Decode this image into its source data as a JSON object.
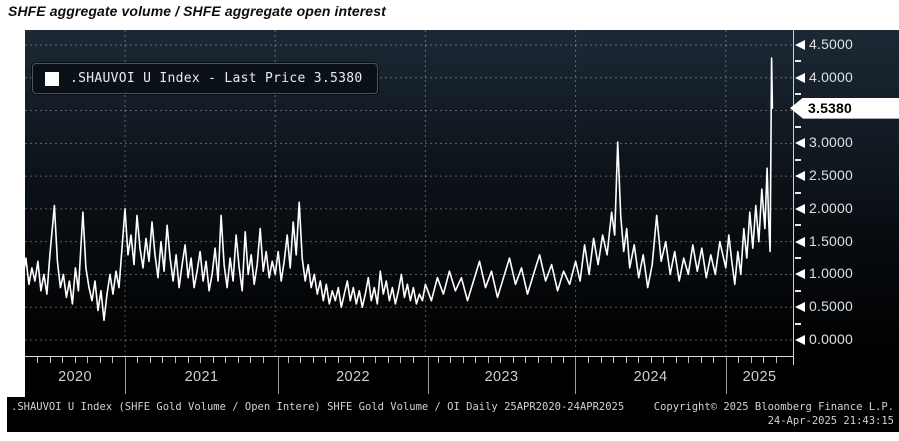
{
  "title": "SHFE aggregate volume / SHFE aggregate open interest",
  "legend": {
    "marker": "white-square",
    "label": ".SHAUVOI U Index - Last Price 3.5380"
  },
  "y_axis": {
    "ticks": [
      {
        "value": 4.5,
        "label": "4.5000"
      },
      {
        "value": 4.0,
        "label": "4.0000"
      },
      {
        "value": 3.0,
        "label": "3.0000"
      },
      {
        "value": 2.5,
        "label": "2.5000"
      },
      {
        "value": 2.0,
        "label": "2.0000"
      },
      {
        "value": 1.5,
        "label": "1.5000"
      },
      {
        "value": 1.0,
        "label": "1.0000"
      },
      {
        "value": 0.5,
        "label": "0.5000"
      },
      {
        "value": 0.0,
        "label": "0.0000"
      }
    ],
    "last_price_label": "3.5380",
    "last_price_value": 3.538
  },
  "x_axis": {
    "year_labels": [
      "2020",
      "2021",
      "2022",
      "2023",
      "2024",
      "2025"
    ]
  },
  "status_bar": {
    "left": ".SHAUVOI U Index (SHFE Gold Volume / Open Intere) SHFE Gold Volume / OI  Daily 25APR2020-24APR2025",
    "copyright": "Copyright© 2025 Bloomberg Finance L.P.",
    "timestamp": "24-Apr-2025 21:43:15"
  },
  "colors": {
    "line": "#ffffff",
    "plot_bg_top": "#1c2936",
    "plot_bg_mid": "#0c1218",
    "plot_bg_bottom": "#000000",
    "grid": "rgba(255,255,255,0.33)",
    "price_box_bg": "#ffffff",
    "price_box_text": "#000000"
  },
  "chart_data": {
    "type": "line",
    "title": "SHFE aggregate volume / SHFE aggregate open interest",
    "xlabel": "",
    "ylabel": "",
    "x_range": [
      "25APR2020",
      "24APR2025"
    ],
    "ylim": [
      0.0,
      4.5
    ],
    "grid": "dotted",
    "legend_position": "top-left",
    "last_price": 3.538,
    "series": [
      {
        "name": ".SHAUVOI U Index",
        "x_unit": "decimal_year",
        "points": [
          [
            2020.32,
            0.95
          ],
          [
            2020.34,
            1.25
          ],
          [
            2020.36,
            0.85
          ],
          [
            2020.38,
            1.1
          ],
          [
            2020.4,
            0.9
          ],
          [
            2020.42,
            1.2
          ],
          [
            2020.44,
            0.75
          ],
          [
            2020.46,
            1.0
          ],
          [
            2020.48,
            0.7
          ],
          [
            2020.5,
            1.3
          ],
          [
            2020.53,
            2.05
          ],
          [
            2020.55,
            1.2
          ],
          [
            2020.57,
            0.8
          ],
          [
            2020.59,
            1.0
          ],
          [
            2020.61,
            0.65
          ],
          [
            2020.63,
            0.9
          ],
          [
            2020.65,
            0.55
          ],
          [
            2020.67,
            1.1
          ],
          [
            2020.69,
            0.75
          ],
          [
            2020.72,
            1.95
          ],
          [
            2020.74,
            1.1
          ],
          [
            2020.76,
            0.8
          ],
          [
            2020.78,
            0.6
          ],
          [
            2020.8,
            0.9
          ],
          [
            2020.82,
            0.45
          ],
          [
            2020.84,
            0.75
          ],
          [
            2020.86,
            0.3
          ],
          [
            2020.88,
            0.7
          ],
          [
            2020.9,
            1.0
          ],
          [
            2020.92,
            0.7
          ],
          [
            2020.94,
            1.05
          ],
          [
            2020.96,
            0.8
          ],
          [
            2020.98,
            1.4
          ],
          [
            2021.0,
            2.0
          ],
          [
            2021.02,
            1.3
          ],
          [
            2021.04,
            1.6
          ],
          [
            2021.06,
            1.15
          ],
          [
            2021.08,
            1.9
          ],
          [
            2021.1,
            1.4
          ],
          [
            2021.12,
            1.1
          ],
          [
            2021.14,
            1.55
          ],
          [
            2021.16,
            1.2
          ],
          [
            2021.18,
            1.8
          ],
          [
            2021.2,
            1.3
          ],
          [
            2021.22,
            0.95
          ],
          [
            2021.24,
            1.5
          ],
          [
            2021.26,
            1.05
          ],
          [
            2021.28,
            1.75
          ],
          [
            2021.3,
            1.25
          ],
          [
            2021.32,
            0.9
          ],
          [
            2021.34,
            1.3
          ],
          [
            2021.36,
            0.8
          ],
          [
            2021.38,
            1.15
          ],
          [
            2021.4,
            1.45
          ],
          [
            2021.42,
            0.95
          ],
          [
            2021.44,
            1.25
          ],
          [
            2021.46,
            0.8
          ],
          [
            2021.48,
            1.05
          ],
          [
            2021.5,
            1.35
          ],
          [
            2021.52,
            0.9
          ],
          [
            2021.54,
            1.2
          ],
          [
            2021.56,
            0.75
          ],
          [
            2021.58,
            1.0
          ],
          [
            2021.6,
            1.4
          ],
          [
            2021.62,
            0.9
          ],
          [
            2021.64,
            1.9
          ],
          [
            2021.66,
            1.15
          ],
          [
            2021.68,
            0.8
          ],
          [
            2021.7,
            1.25
          ],
          [
            2021.72,
            0.9
          ],
          [
            2021.74,
            1.6
          ],
          [
            2021.76,
            1.1
          ],
          [
            2021.78,
            0.75
          ],
          [
            2021.8,
            1.65
          ],
          [
            2021.82,
            1.0
          ],
          [
            2021.84,
            1.3
          ],
          [
            2021.86,
            0.85
          ],
          [
            2021.88,
            1.15
          ],
          [
            2021.9,
            1.7
          ],
          [
            2021.92,
            1.05
          ],
          [
            2021.94,
            1.35
          ],
          [
            2021.96,
            0.95
          ],
          [
            2021.98,
            1.2
          ],
          [
            2022.0,
            1.0
          ],
          [
            2022.02,
            1.35
          ],
          [
            2022.04,
            0.9
          ],
          [
            2022.06,
            1.2
          ],
          [
            2022.08,
            1.6
          ],
          [
            2022.1,
            1.1
          ],
          [
            2022.12,
            1.8
          ],
          [
            2022.14,
            1.3
          ],
          [
            2022.16,
            2.1
          ],
          [
            2022.18,
            1.25
          ],
          [
            2022.2,
            0.9
          ],
          [
            2022.22,
            1.15
          ],
          [
            2022.24,
            0.8
          ],
          [
            2022.26,
            1.0
          ],
          [
            2022.28,
            0.7
          ],
          [
            2022.3,
            0.9
          ],
          [
            2022.32,
            0.6
          ],
          [
            2022.34,
            0.85
          ],
          [
            2022.36,
            0.55
          ],
          [
            2022.38,
            0.75
          ],
          [
            2022.4,
            0.6
          ],
          [
            2022.42,
            0.8
          ],
          [
            2022.44,
            0.5
          ],
          [
            2022.46,
            0.7
          ],
          [
            2022.48,
            0.9
          ],
          [
            2022.5,
            0.6
          ],
          [
            2022.52,
            0.8
          ],
          [
            2022.54,
            0.55
          ],
          [
            2022.56,
            0.75
          ],
          [
            2022.58,
            0.5
          ],
          [
            2022.6,
            0.7
          ],
          [
            2022.62,
            0.95
          ],
          [
            2022.64,
            0.6
          ],
          [
            2022.66,
            0.8
          ],
          [
            2022.68,
            0.55
          ],
          [
            2022.7,
            1.05
          ],
          [
            2022.72,
            0.7
          ],
          [
            2022.74,
            0.9
          ],
          [
            2022.76,
            0.6
          ],
          [
            2022.78,
            0.8
          ],
          [
            2022.8,
            0.55
          ],
          [
            2022.82,
            0.75
          ],
          [
            2022.84,
            1.0
          ],
          [
            2022.86,
            0.65
          ],
          [
            2022.88,
            0.85
          ],
          [
            2022.9,
            0.6
          ],
          [
            2022.92,
            0.8
          ],
          [
            2022.94,
            0.55
          ],
          [
            2022.96,
            0.7
          ],
          [
            2022.98,
            0.6
          ],
          [
            2023.0,
            0.85
          ],
          [
            2023.04,
            0.6
          ],
          [
            2023.08,
            0.95
          ],
          [
            2023.12,
            0.7
          ],
          [
            2023.16,
            1.05
          ],
          [
            2023.2,
            0.75
          ],
          [
            2023.24,
            0.95
          ],
          [
            2023.28,
            0.6
          ],
          [
            2023.32,
            0.9
          ],
          [
            2023.36,
            1.2
          ],
          [
            2023.4,
            0.8
          ],
          [
            2023.44,
            1.05
          ],
          [
            2023.48,
            0.65
          ],
          [
            2023.52,
            0.95
          ],
          [
            2023.56,
            1.25
          ],
          [
            2023.6,
            0.85
          ],
          [
            2023.64,
            1.1
          ],
          [
            2023.68,
            0.7
          ],
          [
            2023.72,
            1.0
          ],
          [
            2023.76,
            1.3
          ],
          [
            2023.8,
            0.9
          ],
          [
            2023.84,
            1.15
          ],
          [
            2023.88,
            0.75
          ],
          [
            2023.92,
            1.05
          ],
          [
            2023.96,
            0.85
          ],
          [
            2024.0,
            1.2
          ],
          [
            2024.03,
            0.9
          ],
          [
            2024.06,
            1.45
          ],
          [
            2024.09,
            1.0
          ],
          [
            2024.12,
            1.55
          ],
          [
            2024.15,
            1.15
          ],
          [
            2024.18,
            1.6
          ],
          [
            2024.21,
            1.3
          ],
          [
            2024.24,
            1.95
          ],
          [
            2024.26,
            1.6
          ],
          [
            2024.28,
            3.02
          ],
          [
            2024.3,
            1.9
          ],
          [
            2024.32,
            1.35
          ],
          [
            2024.34,
            1.7
          ],
          [
            2024.36,
            1.1
          ],
          [
            2024.39,
            1.45
          ],
          [
            2024.42,
            0.95
          ],
          [
            2024.45,
            1.3
          ],
          [
            2024.48,
            0.8
          ],
          [
            2024.51,
            1.15
          ],
          [
            2024.54,
            1.9
          ],
          [
            2024.57,
            1.2
          ],
          [
            2024.6,
            1.5
          ],
          [
            2024.63,
            1.0
          ],
          [
            2024.66,
            1.35
          ],
          [
            2024.69,
            0.9
          ],
          [
            2024.72,
            1.25
          ],
          [
            2024.75,
            1.0
          ],
          [
            2024.78,
            1.45
          ],
          [
            2024.81,
            1.05
          ],
          [
            2024.84,
            1.4
          ],
          [
            2024.87,
            0.95
          ],
          [
            2024.9,
            1.3
          ],
          [
            2024.93,
            1.0
          ],
          [
            2024.96,
            1.5
          ],
          [
            2025.0,
            1.1
          ],
          [
            2025.02,
            1.6
          ],
          [
            2025.04,
            1.2
          ],
          [
            2025.06,
            0.85
          ],
          [
            2025.08,
            1.35
          ],
          [
            2025.1,
            1.0
          ],
          [
            2025.12,
            1.7
          ],
          [
            2025.14,
            1.25
          ],
          [
            2025.16,
            1.95
          ],
          [
            2025.18,
            1.4
          ],
          [
            2025.2,
            2.05
          ],
          [
            2025.22,
            1.5
          ],
          [
            2025.24,
            2.3
          ],
          [
            2025.26,
            1.7
          ],
          [
            2025.275,
            2.62
          ],
          [
            2025.285,
            1.85
          ],
          [
            2025.295,
            1.35
          ],
          [
            2025.305,
            4.3
          ],
          [
            2025.31,
            3.538
          ]
        ]
      }
    ],
    "x_tick_years": [
      2020,
      2021,
      2022,
      2023,
      2024,
      2025
    ],
    "y_tick_step": 0.5
  }
}
